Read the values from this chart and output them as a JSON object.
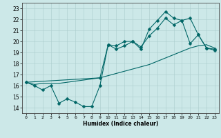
{
  "xlabel": "Humidex (Indice chaleur)",
  "xlim": [
    -0.5,
    23.5
  ],
  "ylim": [
    13.5,
    23.5
  ],
  "xticks": [
    0,
    1,
    2,
    3,
    4,
    5,
    6,
    7,
    8,
    9,
    10,
    11,
    12,
    13,
    14,
    15,
    16,
    17,
    18,
    19,
    20,
    21,
    22,
    23
  ],
  "yticks": [
    14,
    15,
    16,
    17,
    18,
    19,
    20,
    21,
    22,
    23
  ],
  "background_color": "#cce8e8",
  "line_color": "#006666",
  "line1_x": [
    0,
    1,
    2,
    3,
    4,
    5,
    6,
    7,
    8,
    9,
    10,
    11,
    12,
    13,
    14,
    15,
    16,
    17,
    18,
    19,
    20,
    21,
    22,
    23
  ],
  "line1_y": [
    16.3,
    16.0,
    15.6,
    16.0,
    14.4,
    14.8,
    14.5,
    14.1,
    14.1,
    16.0,
    19.7,
    19.6,
    20.0,
    20.0,
    19.3,
    21.1,
    21.9,
    22.7,
    22.1,
    21.9,
    19.8,
    20.6,
    19.4,
    19.3
  ],
  "line2_x": [
    0,
    1,
    2,
    3,
    4,
    5,
    6,
    7,
    8,
    9,
    10,
    11,
    12,
    13,
    14,
    15,
    16,
    17,
    18,
    19,
    20,
    21,
    22,
    23
  ],
  "line2_y": [
    16.3,
    16.1,
    16.2,
    16.2,
    16.2,
    16.3,
    16.4,
    16.5,
    16.6,
    16.7,
    16.9,
    17.1,
    17.3,
    17.5,
    17.7,
    17.9,
    18.2,
    18.5,
    18.8,
    19.1,
    19.4,
    19.6,
    19.7,
    19.4
  ],
  "line3_x": [
    0,
    9,
    10,
    11,
    12,
    13,
    14,
    15,
    16,
    17,
    18,
    19,
    20,
    21,
    22,
    23
  ],
  "line3_y": [
    16.3,
    16.7,
    19.7,
    19.3,
    19.6,
    20.0,
    19.5,
    20.5,
    21.2,
    22.1,
    21.5,
    21.9,
    22.1,
    20.6,
    19.4,
    19.2
  ]
}
